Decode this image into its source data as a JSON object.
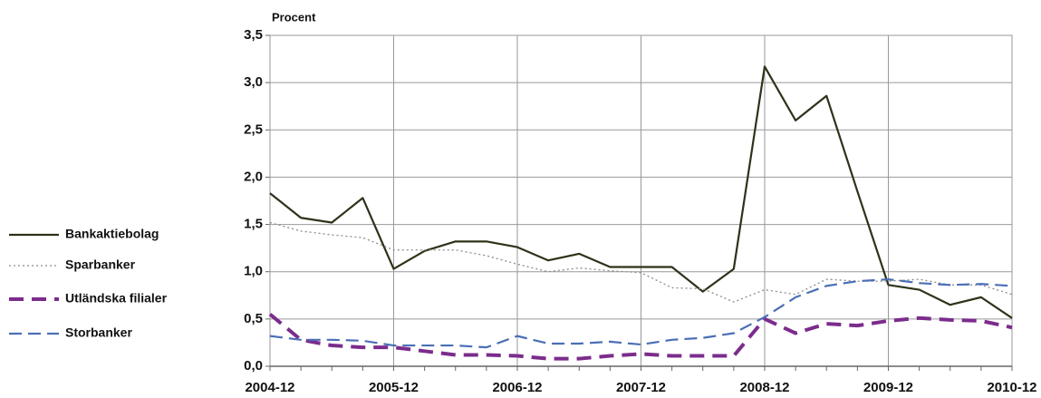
{
  "chart_data": {
    "type": "line",
    "y_label": "Procent",
    "categories": [
      "2004-12",
      null,
      null,
      null,
      "2005-12",
      null,
      null,
      null,
      "2006-12",
      null,
      null,
      null,
      "2007-12",
      null,
      null,
      null,
      "2008-12",
      null,
      null,
      null,
      "2009-12",
      null,
      null,
      null,
      "2010-12"
    ],
    "series": [
      {
        "name": "Bankaktiebolag",
        "color": "#2d3319",
        "style": "solid",
        "values": [
          1.83,
          1.57,
          1.52,
          1.78,
          1.03,
          1.22,
          1.32,
          1.32,
          1.26,
          1.12,
          1.19,
          1.05,
          1.05,
          1.05,
          0.79,
          1.03,
          3.17,
          2.6,
          2.86,
          1.85,
          0.86,
          0.81,
          0.65,
          0.73,
          0.51
        ]
      },
      {
        "name": "Sparbanker",
        "color": "#8c8c8c",
        "style": "dotted",
        "values": [
          1.52,
          1.43,
          1.39,
          1.36,
          1.23,
          1.23,
          1.23,
          1.17,
          1.08,
          1.0,
          1.04,
          1.01,
          0.99,
          0.83,
          0.82,
          0.68,
          0.81,
          0.76,
          0.92,
          0.9,
          0.9,
          0.92,
          0.86,
          0.86,
          0.76
        ]
      },
      {
        "name": "Utländska filialer",
        "color": "#7b2c8c",
        "style": "thick-dashed",
        "values": [
          0.55,
          0.28,
          0.22,
          0.2,
          0.2,
          0.16,
          0.12,
          0.12,
          0.11,
          0.08,
          0.08,
          0.11,
          0.13,
          0.11,
          0.11,
          0.11,
          0.5,
          0.35,
          0.45,
          0.43,
          0.48,
          0.51,
          0.49,
          0.48,
          0.41
        ]
      },
      {
        "name": "Storbanker",
        "color": "#4a6fb5",
        "style": "dashed",
        "values": [
          0.32,
          0.28,
          0.28,
          0.27,
          0.22,
          0.22,
          0.22,
          0.2,
          0.32,
          0.24,
          0.24,
          0.26,
          0.23,
          0.28,
          0.3,
          0.35,
          0.52,
          0.73,
          0.85,
          0.9,
          0.92,
          0.88,
          0.86,
          0.87,
          0.85
        ]
      }
    ],
    "ylim": [
      0,
      3.5
    ],
    "yticks": [
      {
        "value": 0,
        "label": "0,0"
      },
      {
        "value": 0.5,
        "label": "0,5"
      },
      {
        "value": 1,
        "label": "1,0"
      },
      {
        "value": 1.5,
        "label": "1,5"
      },
      {
        "value": 2,
        "label": "2,0"
      },
      {
        "value": 2.5,
        "label": "2,5"
      },
      {
        "value": 3,
        "label": "3,0"
      },
      {
        "value": 3.5,
        "label": "3,5"
      }
    ],
    "grid": true,
    "legend": "left"
  }
}
